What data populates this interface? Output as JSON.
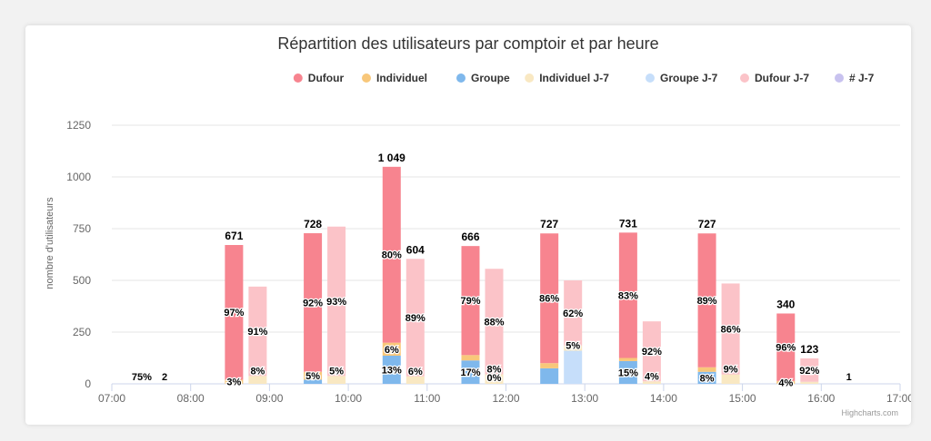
{
  "chart_data": {
    "type": "bar",
    "title": "Répartition des utilisateurs par comptoir et par heure",
    "ylabel": "nombre d'utilisateurs",
    "ylim": [
      0,
      1250
    ],
    "yticks": [
      0,
      250,
      500,
      750,
      1000,
      1250
    ],
    "x_ticks": [
      "07:00",
      "08:00",
      "09:00",
      "10:00",
      "11:00",
      "12:00",
      "13:00",
      "14:00",
      "15:00",
      "16:00",
      "17:00"
    ],
    "grid": true,
    "legend_position": "top-right",
    "credits": "Highcharts.com",
    "legend": [
      {
        "name": "Dufour",
        "color": "#f7848f"
      },
      {
        "name": "Individuel",
        "color": "#f8c77a"
      },
      {
        "name": "Groupe",
        "color": "#7fb8ec"
      },
      {
        "name": "Individuel J-7",
        "color": "#f9e8c2"
      },
      {
        "name": "Groupe J-7",
        "color": "#c6defa"
      },
      {
        "name": "Dufour J-7",
        "color": "#fbc3c8"
      },
      {
        "name": "# J-7",
        "color": "#c8c2ef"
      }
    ],
    "hours": [
      {
        "hour": "07:00",
        "current": {
          "Groupe": 0,
          "Individuel": 0,
          "Dufour": 0,
          "total_label": "",
          "pct": []
        },
        "previous": {
          "Groupe J-7": 0,
          "Individuel J-7": 0,
          "Dufour J-7": 0,
          "total_label": "",
          "pct": []
        },
        "extra_labels": [
          {
            "text": "75%",
            "pos": 0.38
          },
          {
            "text": "2",
            "pos": 0.67
          }
        ]
      },
      {
        "hour": "08:00",
        "current": {
          "Groupe": 0,
          "Individuel": 20,
          "Dufour": 651,
          "total_label": "671",
          "pct": [
            {
              "text": "3%",
              "series": "Individuel"
            },
            {
              "text": "97%",
              "series": "Dufour"
            }
          ]
        },
        "previous": {
          "Groupe J-7": 0,
          "Individuel J-7": 38,
          "Dufour J-7": 432,
          "total_label": "",
          "pct": [
            {
              "text": "8%",
              "series": "Individuel J-7",
              "mode": "top"
            },
            {
              "text": "91%",
              "series": "Dufour J-7"
            }
          ]
        }
      },
      {
        "hour": "09:00",
        "current": {
          "Groupe": 20,
          "Individuel": 38,
          "Dufour": 670,
          "total_label": "728",
          "pct": [
            {
              "text": "5%",
              "series": "Individuel"
            },
            {
              "text": "92%",
              "series": "Dufour"
            }
          ]
        },
        "previous": {
          "Groupe J-7": 0,
          "Individuel J-7": 38,
          "Dufour J-7": 722,
          "total_label": "",
          "pct": [
            {
              "text": "5%",
              "series": "Individuel J-7",
              "mode": "top"
            },
            {
              "text": "93%",
              "series": "Dufour J-7"
            }
          ]
        }
      },
      {
        "hour": "10:00",
        "current": {
          "Groupe": 136,
          "Individuel": 63,
          "Dufour": 850,
          "total_label": "1 049",
          "pct": [
            {
              "text": "13%",
              "series": "Groupe"
            },
            {
              "text": "6%",
              "series": "Individuel"
            },
            {
              "text": "80%",
              "series": "Dufour"
            }
          ]
        },
        "previous": {
          "Groupe J-7": 0,
          "Individuel J-7": 36,
          "Dufour J-7": 568,
          "total_label": "604",
          "pct": [
            {
              "text": "6%",
              "series": "Individuel J-7",
              "mode": "top"
            },
            {
              "text": "89%",
              "series": "Dufour J-7"
            }
          ]
        }
      },
      {
        "hour": "11:00",
        "current": {
          "Groupe": 113,
          "Individuel": 26,
          "Dufour": 527,
          "total_label": "666",
          "pct": [
            {
              "text": "17%",
              "series": "Groupe"
            },
            {
              "text": "79%",
              "series": "Dufour"
            }
          ]
        },
        "previous": {
          "Groupe J-7": 0,
          "Individuel J-7": 46,
          "Dufour J-7": 510,
          "total_label": "",
          "pct": [
            {
              "text": "0%",
              "series": "Groupe J-7",
              "mode": "bottom"
            },
            {
              "text": "8%",
              "series": "Individuel J-7",
              "mode": "top"
            },
            {
              "text": "88%",
              "series": "Dufour J-7"
            }
          ]
        }
      },
      {
        "hour": "12:00",
        "current": {
          "Groupe": 75,
          "Individuel": 25,
          "Dufour": 627,
          "total_label": "727",
          "pct": [
            {
              "text": "86%",
              "series": "Dufour"
            }
          ]
        },
        "previous": {
          "Groupe J-7": 160,
          "Individuel J-7": 25,
          "Dufour J-7": 315,
          "total_label": "",
          "pct": [
            {
              "text": "5%",
              "series": "Groupe J-7",
              "mode": "top"
            },
            {
              "text": "62%",
              "series": "Dufour J-7"
            }
          ]
        }
      },
      {
        "hour": "13:00",
        "current": {
          "Groupe": 110,
          "Individuel": 15,
          "Dufour": 606,
          "total_label": "731",
          "pct": [
            {
              "text": "15%",
              "series": "Groupe"
            },
            {
              "text": "83%",
              "series": "Dufour"
            }
          ]
        },
        "previous": {
          "Groupe J-7": 0,
          "Individuel J-7": 12,
          "Dufour J-7": 290,
          "total_label": "",
          "pct": [
            {
              "text": "4%",
              "series": "Individuel J-7",
              "mode": "top"
            },
            {
              "text": "92%",
              "series": "Dufour J-7"
            }
          ]
        }
      },
      {
        "hour": "14:00",
        "current": {
          "Groupe": 58,
          "Individuel": 22,
          "Dufour": 647,
          "total_label": "727",
          "pct": [
            {
              "text": "8%",
              "series": "Groupe"
            },
            {
              "text": "89%",
              "series": "Dufour"
            }
          ]
        },
        "previous": {
          "Groupe J-7": 0,
          "Individuel J-7": 45,
          "Dufour J-7": 440,
          "total_label": "",
          "pct": [
            {
              "text": "9%",
              "series": "Individuel J-7",
              "mode": "top"
            },
            {
              "text": "86%",
              "series": "Dufour J-7"
            }
          ]
        }
      },
      {
        "hour": "15:00",
        "current": {
          "Groupe": 0,
          "Individuel": 14,
          "Dufour": 326,
          "total_label": "340",
          "pct": [
            {
              "text": "4%",
              "series": "Individuel"
            },
            {
              "text": "96%",
              "series": "Dufour"
            }
          ]
        },
        "previous": {
          "Groupe J-7": 0,
          "Individuel J-7": 10,
          "Dufour J-7": 113,
          "total_label": "123",
          "pct": [
            {
              "text": "92%",
              "series": "Dufour J-7"
            }
          ]
        }
      },
      {
        "hour": "16:00",
        "current": {
          "Groupe": 0,
          "Individuel": 0,
          "Dufour": 0,
          "total_label": "",
          "pct": []
        },
        "previous": {
          "Groupe J-7": 0,
          "Individuel J-7": 0,
          "Dufour J-7": 0,
          "total_label": "",
          "pct": []
        },
        "extra_labels": [
          {
            "text": "1",
            "pos": 0.35
          }
        ]
      }
    ]
  }
}
